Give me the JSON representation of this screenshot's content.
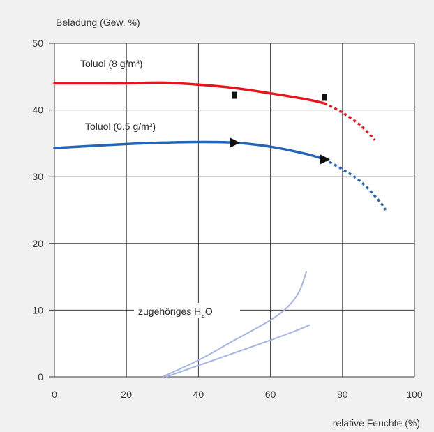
{
  "chart_data": {
    "type": "line",
    "title": "",
    "ylabel": "Beladung (Gew. %)",
    "xlabel": "relative Feuchte (%)",
    "xlim": [
      0,
      100
    ],
    "ylim": [
      0,
      50
    ],
    "x_ticks": [
      0,
      20,
      40,
      60,
      80,
      100
    ],
    "y_ticks": [
      0,
      10,
      20,
      30,
      40,
      50
    ],
    "grid": true,
    "legend": "none",
    "series": [
      {
        "name": "Toluol (8 g/m³)",
        "color": "#e8141c",
        "solid": {
          "x": [
            0,
            10,
            20,
            30,
            40,
            50,
            60,
            70,
            75
          ],
          "y": [
            44,
            44,
            44,
            44.1,
            43.8,
            43.3,
            42.5,
            41.6,
            41.0
          ]
        },
        "dotted": {
          "x": [
            75,
            80,
            85,
            89
          ],
          "y": [
            41.0,
            39.6,
            37.7,
            35.5
          ]
        }
      },
      {
        "name": "Toluol (0.5 g/m³)",
        "color": "#2565b5",
        "solid": {
          "x": [
            0,
            10,
            20,
            30,
            40,
            50,
            60,
            70,
            75
          ],
          "y": [
            34.3,
            34.6,
            34.9,
            35.1,
            35.2,
            35.1,
            34.5,
            33.4,
            32.6
          ]
        },
        "dotted": {
          "x": [
            75,
            80,
            85,
            90,
            92
          ],
          "y": [
            32.6,
            31.1,
            29.3,
            26.5,
            25.0
          ]
        }
      },
      {
        "name": "zugehöriges H₂O",
        "color": "#a5b4e3",
        "curves": [
          {
            "x": [
              30,
              40,
              50,
              60,
              65,
              68,
              70
            ],
            "y": [
              0,
              2.5,
              5.5,
              8.5,
              10.6,
              12.8,
              15.8
            ]
          },
          {
            "x": [
              31,
              40,
              50,
              60,
              67,
              71
            ],
            "y": [
              0,
              1.7,
              3.6,
              5.5,
              6.9,
              7.8
            ]
          }
        ]
      }
    ],
    "markers": {
      "squares": [
        {
          "x": 50,
          "y": 42.2
        },
        {
          "x": 75,
          "y": 41.9
        }
      ],
      "arrows": [
        {
          "x": 50,
          "y": 35.1
        },
        {
          "x": 75,
          "y": 32.6
        }
      ]
    },
    "labels": {
      "toluol_8": "Toluol (8 g/m³)",
      "toluol_05": "Toluol (0.5 g/m³)",
      "h2o_prefix": "zugehöriges H",
      "h2o_sub": "2",
      "h2o_suffix": "O"
    },
    "colors": {
      "plot_bg": "#ffffff",
      "page_bg": "#f1f1f1",
      "grid": "#3a3a3a",
      "marker": "#111111"
    }
  }
}
